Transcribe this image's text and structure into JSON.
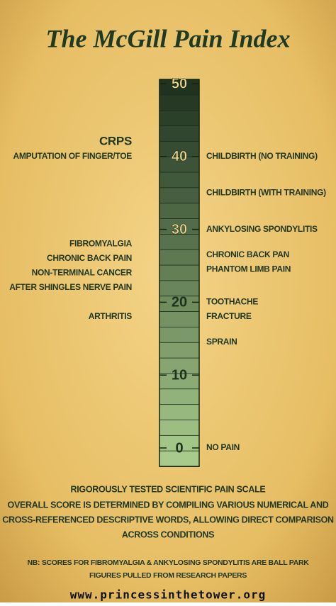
{
  "header": {
    "title": "The McGill Pain Index"
  },
  "scale": {
    "range": [
      0,
      50
    ],
    "ticks": [
      0,
      10,
      20,
      30,
      40,
      50
    ]
  },
  "left_labels": [
    {
      "text": "CRPS",
      "value": 42
    },
    {
      "text": "AMPUTATION OF FINGER/TOE",
      "value": 40
    },
    {
      "text": "FIBROMYALGIA",
      "value": 28
    },
    {
      "text": "CHRONIC BACK PAIN",
      "value": 26
    },
    {
      "text": "NON-TERMINAL CANCER",
      "value": 24
    },
    {
      "text": "AFTER SHINGLES NERVE PAIN",
      "value": 22
    },
    {
      "text": "ARTHRITIS",
      "value": 18
    }
  ],
  "right_labels": [
    {
      "text": "CHILDBIRTH (NO TRAINING)",
      "value": 40
    },
    {
      "text": "CHILDBIRTH (WITH TRAINING)",
      "value": 35
    },
    {
      "text": "ANKYLOSING SPONDYLITIS",
      "value": 30
    },
    {
      "text": "CHRONIC BACK PAN",
      "value": 26.5
    },
    {
      "text": "PHANTOM LIMB PAIN",
      "value": 24.5
    },
    {
      "text": "TOOTHACHE",
      "value": 20
    },
    {
      "text": "FRACTURE",
      "value": 18
    },
    {
      "text": "SPRAIN",
      "value": 14.5
    },
    {
      "text": "NO PAIN",
      "value": 0
    }
  ],
  "footer": {
    "lines": [
      "RIGOROUSLY TESTED SCIENTIFIC PAIN SCALE",
      "OVERALL SCORE IS DETERMINED BY COMPILING VARIOUS NUMERICAL AND",
      "CROSS-REFERENCED DESCRIPTIVE WORDS, ALLOWING DIRECT COMPARISON",
      "ACROSS CONDITIONS"
    ],
    "note": [
      "NB: SCORES FOR FIBROMYALGIA & ANKYLOSING SPONDYLITIS ARE BALL PARK",
      "FIGURES PULLED FROM RESEARCH PAPERS"
    ],
    "website": "www.princessinthetower.org"
  }
}
